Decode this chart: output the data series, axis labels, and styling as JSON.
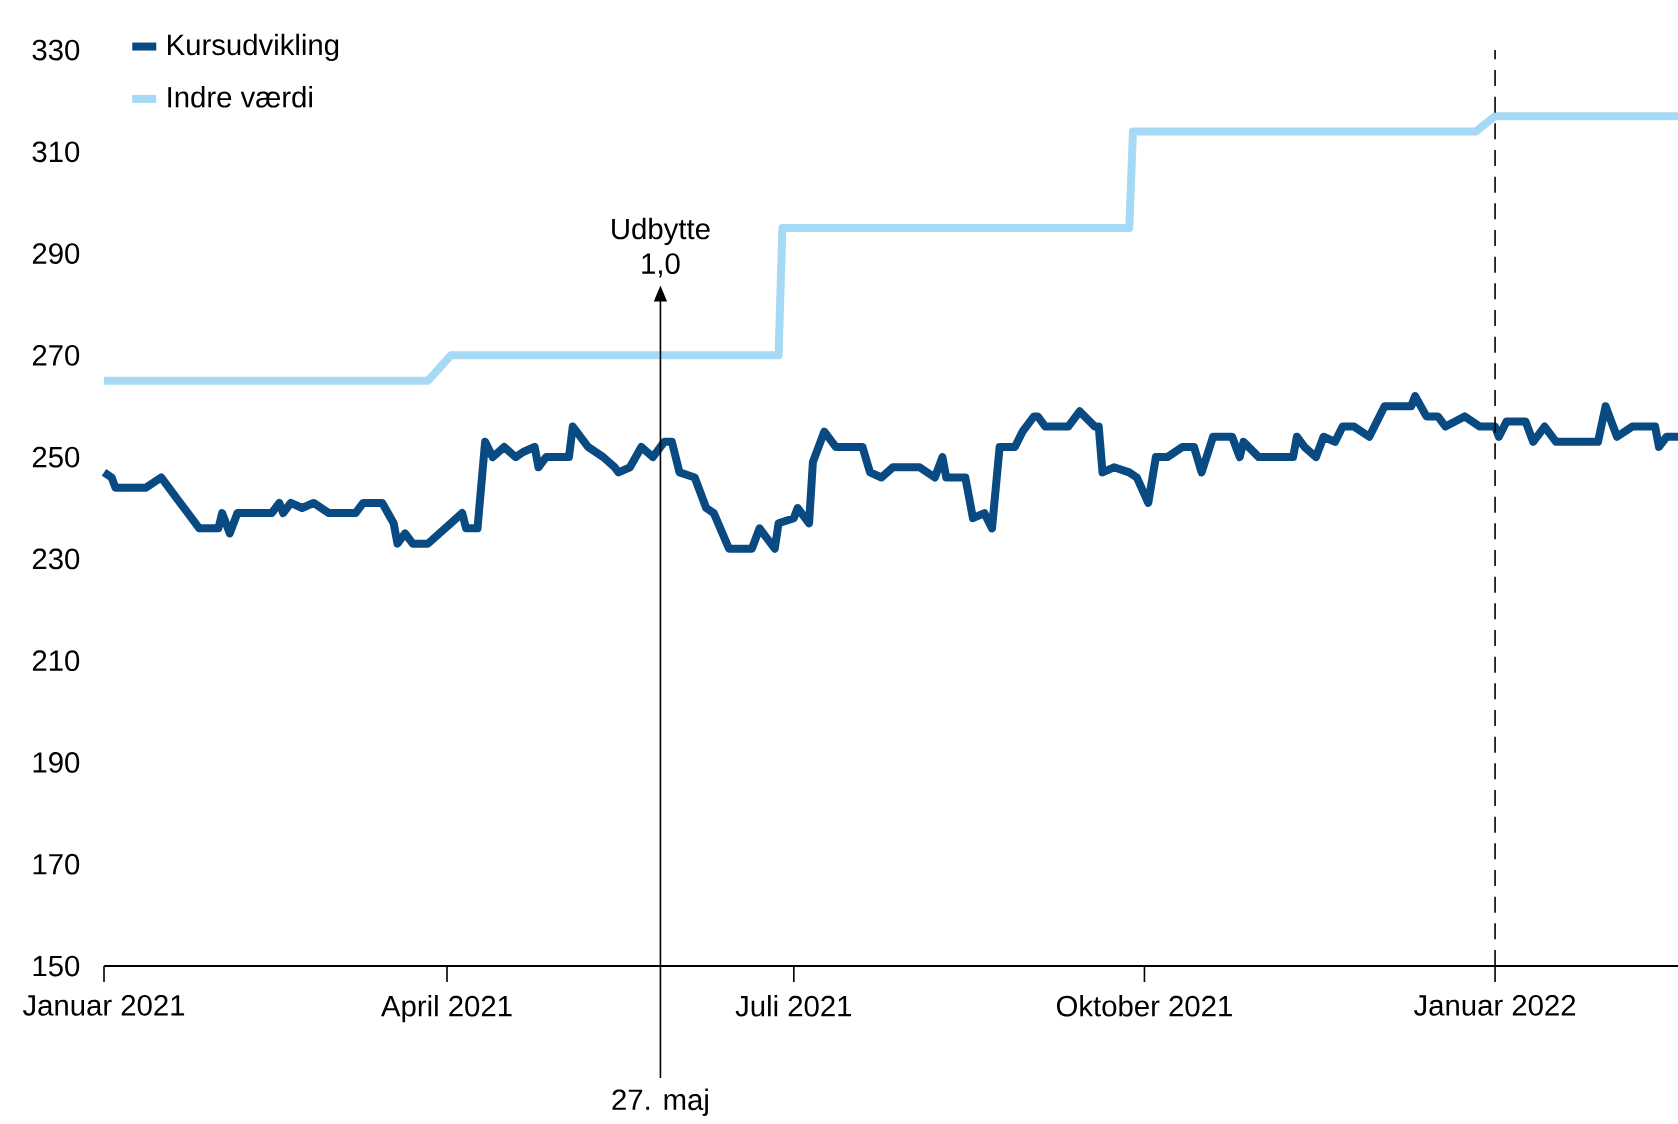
{
  "chart_data": {
    "type": "line",
    "legend": "top left",
    "xlim": [
      "2021-01-01",
      "2022-02-18"
    ],
    "ylim": [
      150,
      330
    ],
    "yticks": [
      150,
      170,
      190,
      210,
      230,
      250,
      270,
      290,
      310,
      330
    ],
    "xticks": [
      {
        "value": "2021-01-01",
        "label": "Januar 2021"
      },
      {
        "value": "2021-04-01",
        "label": "April 2021"
      },
      {
        "value": "2021-07-01",
        "label": "Juli 2021"
      },
      {
        "value": "2021-10-01",
        "label": "Oktober 2021"
      },
      {
        "value": "2022-01-01",
        "label": "Januar 2022"
      }
    ],
    "series": [
      {
        "name": "Kursudvikling",
        "color": "#0a4a82",
        "x": [
          "2021-01-01",
          "2021-01-03",
          "2021-01-04",
          "2021-01-12",
          "2021-01-16",
          "2021-01-20",
          "2021-01-26",
          "2021-01-31",
          "2021-02-01",
          "2021-02-03",
          "2021-02-05",
          "2021-02-14",
          "2021-02-16",
          "2021-02-17",
          "2021-02-19",
          "2021-02-22",
          "2021-02-25",
          "2021-03-01",
          "2021-03-08",
          "2021-03-10",
          "2021-03-15",
          "2021-03-18",
          "2021-03-19",
          "2021-03-21",
          "2021-03-23",
          "2021-03-27",
          "2021-04-02",
          "2021-04-05",
          "2021-04-06",
          "2021-04-09",
          "2021-04-11",
          "2021-04-13",
          "2021-04-16",
          "2021-04-19",
          "2021-04-21",
          "2021-04-24",
          "2021-04-25",
          "2021-04-27",
          "2021-04-30",
          "2021-05-03",
          "2021-05-04",
          "2021-05-08",
          "2021-05-12",
          "2021-05-15",
          "2021-05-16",
          "2021-05-19",
          "2021-05-22",
          "2021-05-25",
          "2021-05-28",
          "2021-05-30",
          "2021-06-01",
          "2021-06-05",
          "2021-06-08",
          "2021-06-10",
          "2021-06-14",
          "2021-06-20",
          "2021-06-22",
          "2021-06-26",
          "2021-06-27",
          "2021-07-01",
          "2021-07-02",
          "2021-07-05",
          "2021-07-06",
          "2021-07-09",
          "2021-07-12",
          "2021-07-19",
          "2021-07-21",
          "2021-07-24",
          "2021-07-27",
          "2021-08-03",
          "2021-08-07",
          "2021-08-09",
          "2021-08-10",
          "2021-08-15",
          "2021-08-17",
          "2021-08-20",
          "2021-08-22",
          "2021-08-24",
          "2021-08-28",
          "2021-08-30",
          "2021-09-02",
          "2021-09-03",
          "2021-09-05",
          "2021-09-11",
          "2021-09-14",
          "2021-09-18",
          "2021-09-19",
          "2021-09-20",
          "2021-09-23",
          "2021-09-27",
          "2021-09-29",
          "2021-10-02",
          "2021-10-04",
          "2021-10-07",
          "2021-10-11",
          "2021-10-14",
          "2021-10-16",
          "2021-10-19",
          "2021-10-24",
          "2021-10-26",
          "2021-10-27",
          "2021-10-31",
          "2021-11-09",
          "2021-11-10",
          "2021-11-12",
          "2021-11-15",
          "2021-11-17",
          "2021-11-20",
          "2021-11-22",
          "2021-11-25",
          "2021-11-29",
          "2021-12-03",
          "2021-12-10",
          "2021-12-11",
          "2021-12-14",
          "2021-12-17",
          "2021-12-19",
          "2021-12-24",
          "2021-12-28",
          "2022-01-01",
          "2022-01-02",
          "2022-01-04",
          "2022-01-09",
          "2022-01-11",
          "2022-01-14",
          "2022-01-17",
          "2022-01-28",
          "2022-01-30",
          "2022-02-02",
          "2022-02-06",
          "2022-02-12",
          "2022-02-13",
          "2022-02-15",
          "2022-02-18"
        ],
        "values": [
          247,
          246,
          244,
          244,
          246,
          242,
          236,
          236,
          239,
          235,
          239,
          239,
          241,
          239,
          241,
          240,
          241,
          239,
          239,
          241,
          241,
          237,
          233,
          235,
          233,
          233,
          237,
          239,
          236,
          236,
          253,
          250,
          252,
          250,
          251,
          252,
          248,
          250,
          250,
          250,
          256,
          252,
          250,
          248,
          247,
          248,
          252,
          250,
          253,
          253,
          247,
          246,
          240,
          239,
          232,
          232,
          236,
          232,
          237,
          238,
          240,
          237,
          249,
          255,
          252,
          252,
          247,
          246,
          248,
          248,
          246,
          250,
          246,
          246,
          238,
          239,
          236,
          252,
          252,
          255,
          258,
          258,
          256,
          256,
          259,
          256,
          256,
          247,
          248,
          247,
          246,
          241,
          250,
          250,
          252,
          252,
          247,
          254,
          254,
          250,
          253,
          250,
          250,
          254,
          252,
          250,
          254,
          253,
          256,
          256,
          254,
          260,
          260,
          262,
          258,
          258,
          256,
          258,
          256,
          256,
          254,
          257,
          257,
          253,
          256,
          253,
          253,
          260,
          254,
          256,
          256,
          252,
          254,
          254
        ]
      },
      {
        "name": "Indre værdi",
        "color": "#a6d9f5",
        "x": [
          "2021-01-01",
          "2021-03-27",
          "2021-04-02",
          "2021-06-27",
          "2021-06-28",
          "2021-09-27",
          "2021-09-28",
          "2021-12-27",
          "2022-01-01",
          "2022-02-18"
        ],
        "values": [
          265,
          265,
          270,
          270,
          295,
          295,
          314,
          314,
          317,
          317
        ]
      }
    ],
    "ref_lines": [
      {
        "axis": "x",
        "value": "2021-05-27",
        "label": "27. maj",
        "line_style": "solid",
        "color": "#000000"
      },
      {
        "axis": "x",
        "value": "2022-01-01",
        "line_style": "dashed",
        "color": "#000000"
      }
    ],
    "annotations": [
      "Udbytte 1,0"
    ]
  }
}
